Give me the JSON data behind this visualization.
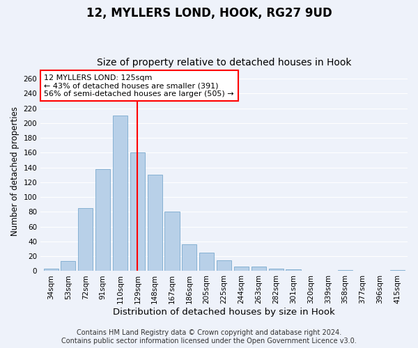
{
  "title1": "12, MYLLERS LOND, HOOK, RG27 9UD",
  "title2": "Size of property relative to detached houses in Hook",
  "xlabel": "Distribution of detached houses by size in Hook",
  "ylabel": "Number of detached properties",
  "categories": [
    "34sqm",
    "53sqm",
    "72sqm",
    "91sqm",
    "110sqm",
    "129sqm",
    "148sqm",
    "167sqm",
    "186sqm",
    "205sqm",
    "225sqm",
    "244sqm",
    "263sqm",
    "282sqm",
    "301sqm",
    "320sqm",
    "339sqm",
    "358sqm",
    "377sqm",
    "396sqm",
    "415sqm"
  ],
  "values": [
    3,
    14,
    85,
    138,
    210,
    160,
    130,
    80,
    36,
    25,
    15,
    6,
    6,
    3,
    2,
    0,
    0,
    1,
    0,
    0,
    1
  ],
  "bar_color": "#b8d0e8",
  "bar_edge_color": "#7aaace",
  "vline_x": 5,
  "vline_color": "red",
  "annotation_text": "12 MYLLERS LOND: 125sqm\n← 43% of detached houses are smaller (391)\n56% of semi-detached houses are larger (505) →",
  "annotation_box_color": "white",
  "annotation_box_edge_color": "red",
  "ylim": [
    0,
    270
  ],
  "yticks": [
    0,
    20,
    40,
    60,
    80,
    100,
    120,
    140,
    160,
    180,
    200,
    220,
    240,
    260
  ],
  "footer1": "Contains HM Land Registry data © Crown copyright and database right 2024.",
  "footer2": "Contains public sector information licensed under the Open Government Licence v3.0.",
  "background_color": "#eef2fa",
  "grid_color": "white",
  "title1_fontsize": 12,
  "title2_fontsize": 10,
  "xlabel_fontsize": 9.5,
  "ylabel_fontsize": 8.5,
  "tick_fontsize": 7.5,
  "footer_fontsize": 7,
  "annotation_fontsize": 8
}
